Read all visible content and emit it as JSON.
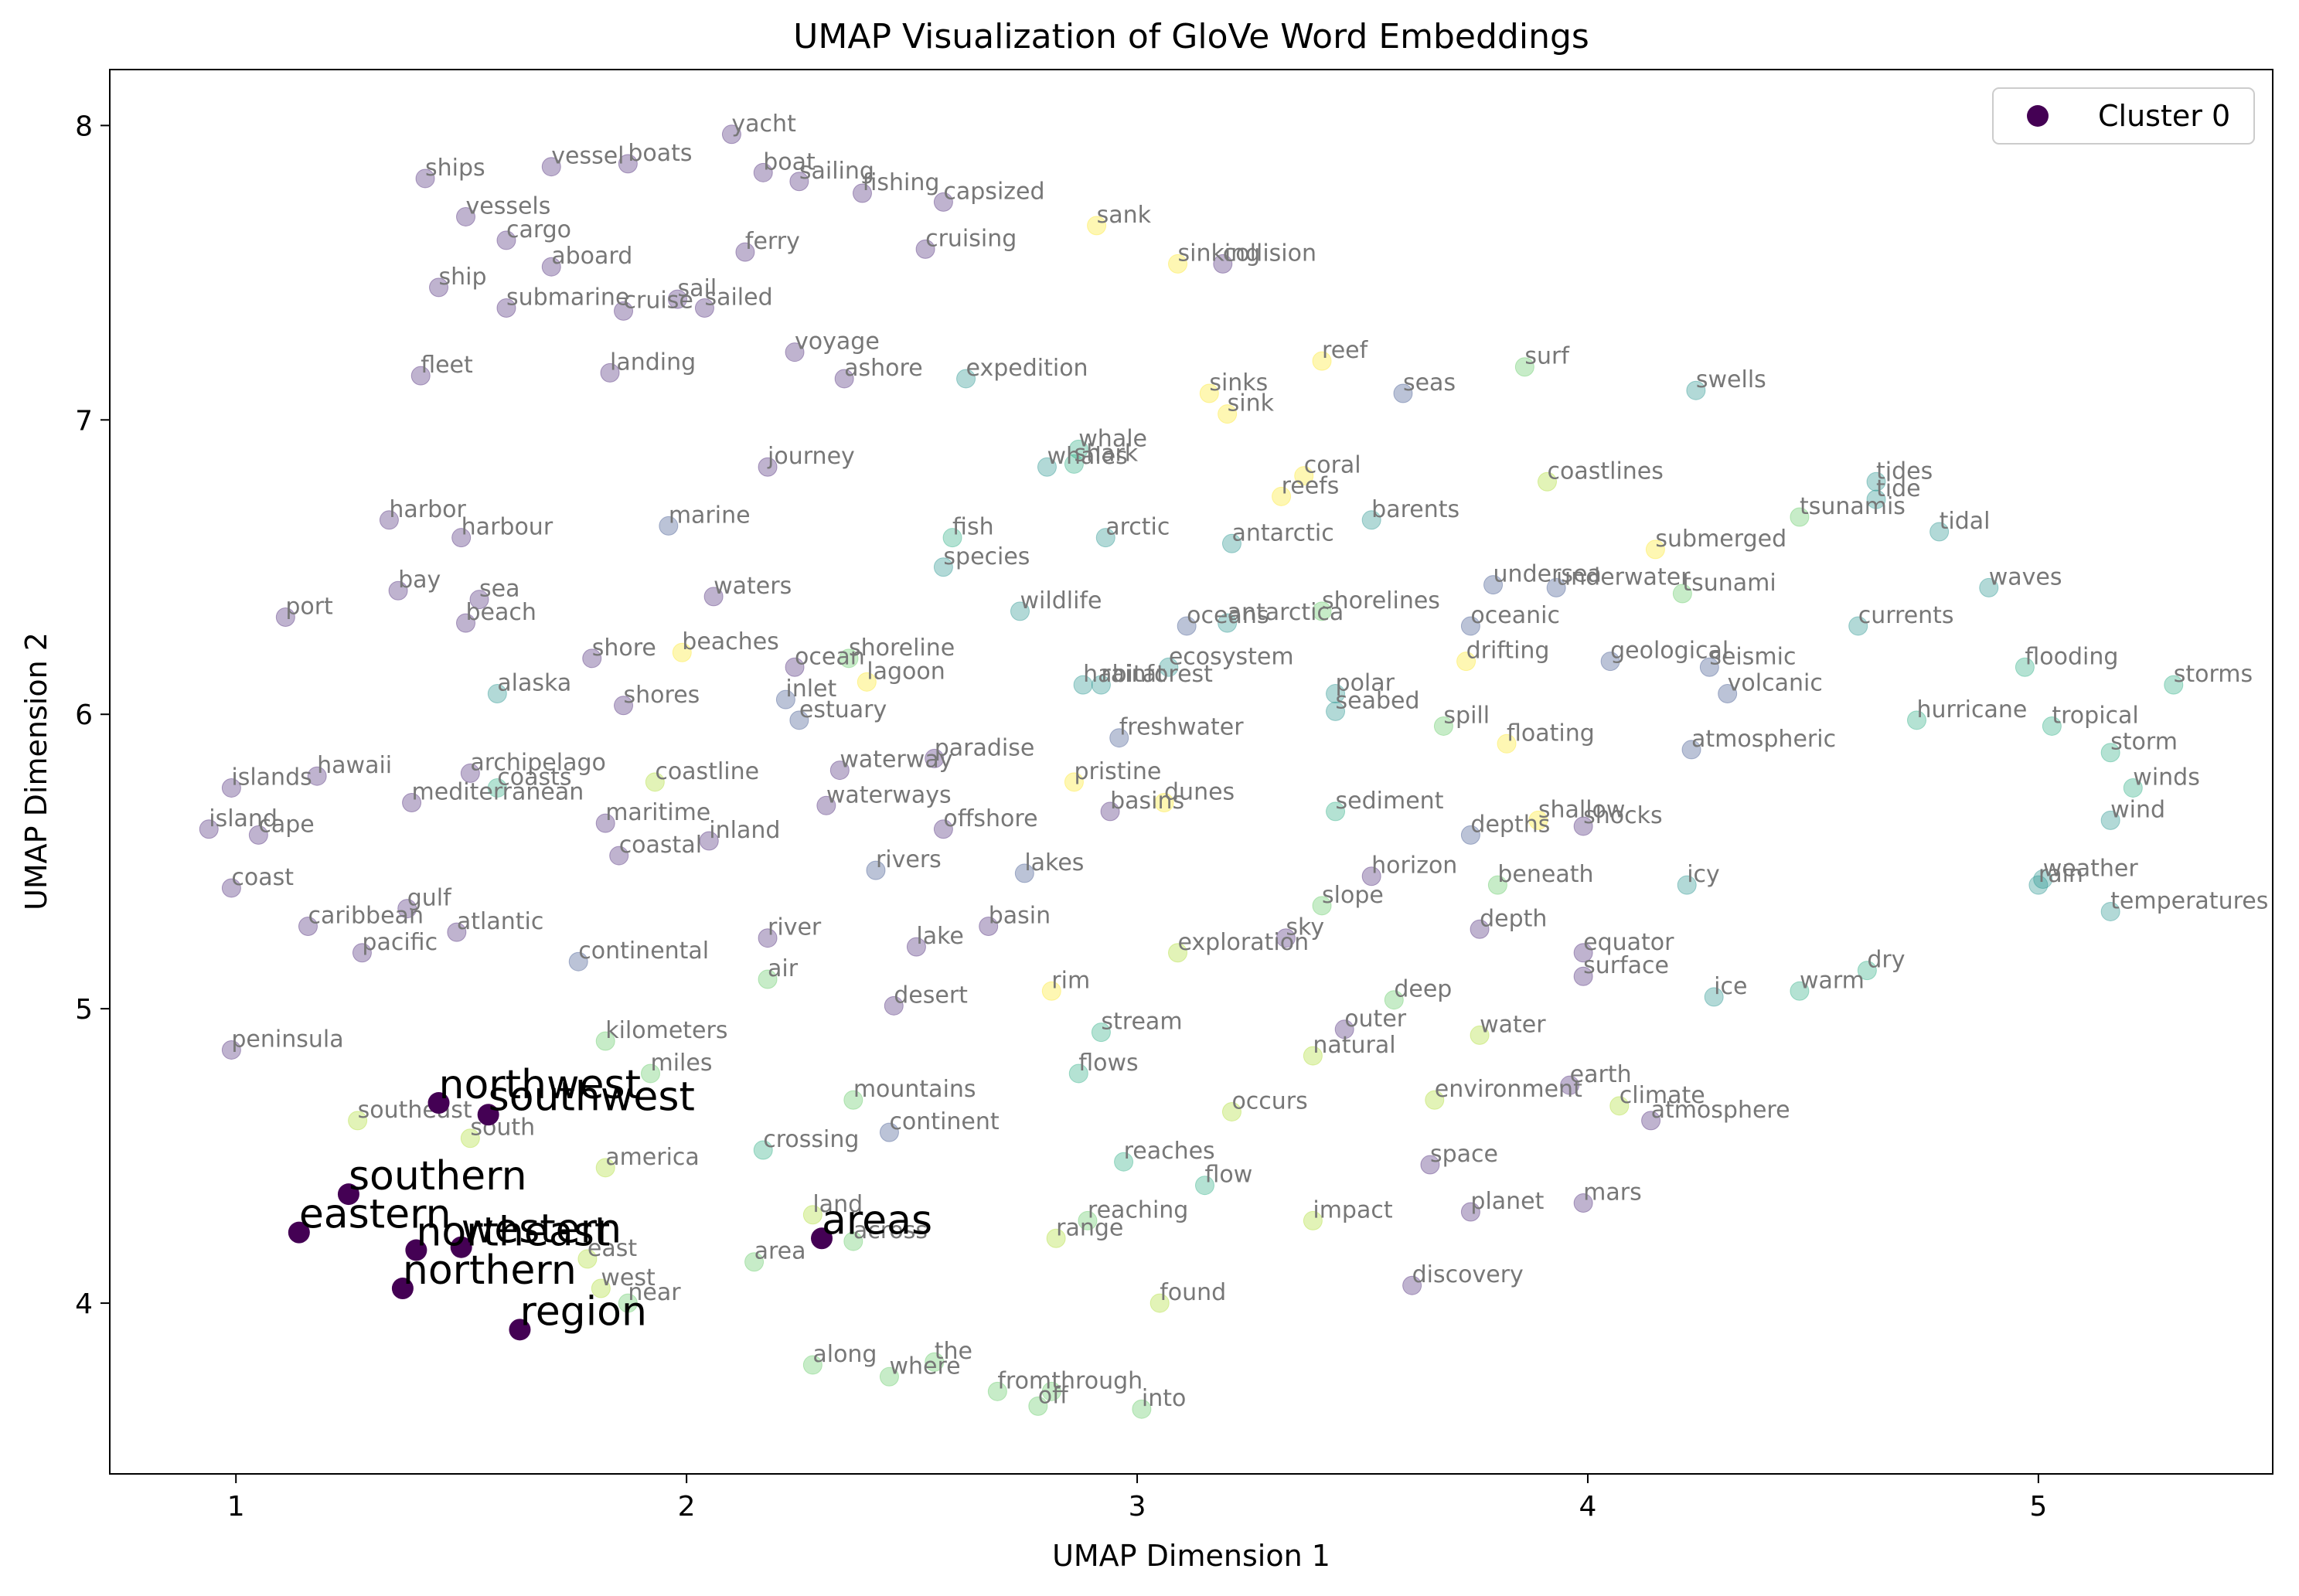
{
  "chart_data": {
    "type": "scatter",
    "title": "UMAP Visualization of GloVe Word Embeddings",
    "xlabel": "UMAP Dimension 1",
    "ylabel": "UMAP Dimension 2",
    "xlim": [
      0.72,
      5.52
    ],
    "ylim": [
      3.42,
      8.19
    ],
    "xticks": [
      1,
      2,
      3,
      4,
      5
    ],
    "yticks": [
      4,
      5,
      6,
      7,
      8
    ],
    "grid": false,
    "legend_position": "top-right",
    "legend": [
      {
        "name": "Cluster 0",
        "color": "#440154"
      }
    ],
    "colors": {
      "c0": "#440154",
      "c1": "#482475",
      "c2": "#3b528b",
      "c3": "#21918c",
      "c4": "#27ad81",
      "c5": "#5ec962",
      "c6": "#addc30",
      "c7": "#fde725"
    },
    "highlighted_cluster": {
      "name": "Cluster 0",
      "points": [
        {
          "w": "northwest",
          "x": 1.45,
          "y": 4.68
        },
        {
          "w": "southwest",
          "x": 1.56,
          "y": 4.64
        },
        {
          "w": "southern",
          "x": 1.25,
          "y": 4.37
        },
        {
          "w": "eastern",
          "x": 1.14,
          "y": 4.24
        },
        {
          "w": "northeast",
          "x": 1.4,
          "y": 4.18
        },
        {
          "w": "western",
          "x": 1.5,
          "y": 4.19
        },
        {
          "w": "northern",
          "x": 1.37,
          "y": 4.05
        },
        {
          "w": "region",
          "x": 1.63,
          "y": 3.91
        },
        {
          "w": "areas",
          "x": 2.3,
          "y": 4.22
        }
      ]
    },
    "points": [
      {
        "w": "yacht",
        "x": 2.1,
        "y": 7.97,
        "c": 1
      },
      {
        "w": "ships",
        "x": 1.42,
        "y": 7.82,
        "c": 1
      },
      {
        "w": "vessel",
        "x": 1.7,
        "y": 7.86,
        "c": 1
      },
      {
        "w": "boats",
        "x": 1.87,
        "y": 7.87,
        "c": 1
      },
      {
        "w": "boat",
        "x": 2.17,
        "y": 7.84,
        "c": 1
      },
      {
        "w": "sailing",
        "x": 2.25,
        "y": 7.81,
        "c": 1
      },
      {
        "w": "fishing",
        "x": 2.39,
        "y": 7.77,
        "c": 1
      },
      {
        "w": "capsized",
        "x": 2.57,
        "y": 7.74,
        "c": 1
      },
      {
        "w": "vessels",
        "x": 1.51,
        "y": 7.69,
        "c": 1
      },
      {
        "w": "cargo",
        "x": 1.6,
        "y": 7.61,
        "c": 1
      },
      {
        "w": "ferry",
        "x": 2.13,
        "y": 7.57,
        "c": 1
      },
      {
        "w": "cruising",
        "x": 2.53,
        "y": 7.58,
        "c": 1
      },
      {
        "w": "sank",
        "x": 2.91,
        "y": 7.66,
        "c": 7
      },
      {
        "w": "sinking",
        "x": 3.09,
        "y": 7.53,
        "c": 7
      },
      {
        "w": "collision",
        "x": 3.19,
        "y": 7.53,
        "c": 1
      },
      {
        "w": "aboard",
        "x": 1.7,
        "y": 7.52,
        "c": 1
      },
      {
        "w": "ship",
        "x": 1.45,
        "y": 7.45,
        "c": 1
      },
      {
        "w": "sail",
        "x": 1.98,
        "y": 7.41,
        "c": 1
      },
      {
        "w": "submarine",
        "x": 1.6,
        "y": 7.38,
        "c": 1
      },
      {
        "w": "cruise",
        "x": 1.86,
        "y": 7.37,
        "c": 1
      },
      {
        "w": "sailed",
        "x": 2.04,
        "y": 7.38,
        "c": 1
      },
      {
        "w": "fleet",
        "x": 1.41,
        "y": 7.15,
        "c": 1
      },
      {
        "w": "landing",
        "x": 1.83,
        "y": 7.16,
        "c": 1
      },
      {
        "w": "voyage",
        "x": 2.24,
        "y": 7.23,
        "c": 1
      },
      {
        "w": "ashore",
        "x": 2.35,
        "y": 7.14,
        "c": 1
      },
      {
        "w": "expedition",
        "x": 2.62,
        "y": 7.14,
        "c": 3
      },
      {
        "w": "reef",
        "x": 3.41,
        "y": 7.2,
        "c": 7
      },
      {
        "w": "sinks",
        "x": 3.16,
        "y": 7.09,
        "c": 7
      },
      {
        "w": "sink",
        "x": 3.2,
        "y": 7.02,
        "c": 7
      },
      {
        "w": "surf",
        "x": 3.86,
        "y": 7.18,
        "c": 5
      },
      {
        "w": "seas",
        "x": 3.59,
        "y": 7.09,
        "c": 2
      },
      {
        "w": "swells",
        "x": 4.24,
        "y": 7.1,
        "c": 3
      },
      {
        "w": "journey",
        "x": 2.18,
        "y": 6.84,
        "c": 1
      },
      {
        "w": "whale",
        "x": 2.87,
        "y": 6.9,
        "c": 4
      },
      {
        "w": "whales",
        "x": 2.8,
        "y": 6.84,
        "c": 3
      },
      {
        "w": "shark",
        "x": 2.86,
        "y": 6.85,
        "c": 4
      },
      {
        "w": "coral",
        "x": 3.37,
        "y": 6.81,
        "c": 7
      },
      {
        "w": "reefs",
        "x": 3.32,
        "y": 6.74,
        "c": 7
      },
      {
        "w": "coastlines",
        "x": 3.91,
        "y": 6.79,
        "c": 6
      },
      {
        "w": "tides",
        "x": 4.64,
        "y": 6.79,
        "c": 3
      },
      {
        "w": "tide",
        "x": 4.64,
        "y": 6.73,
        "c": 3
      },
      {
        "w": "harbor",
        "x": 1.34,
        "y": 6.66,
        "c": 1
      },
      {
        "w": "harbour",
        "x": 1.5,
        "y": 6.6,
        "c": 1
      },
      {
        "w": "marine",
        "x": 1.96,
        "y": 6.64,
        "c": 2
      },
      {
        "w": "fish",
        "x": 2.59,
        "y": 6.6,
        "c": 4
      },
      {
        "w": "arctic",
        "x": 2.93,
        "y": 6.6,
        "c": 3
      },
      {
        "w": "antarctic",
        "x": 3.21,
        "y": 6.58,
        "c": 3
      },
      {
        "w": "barents",
        "x": 3.52,
        "y": 6.66,
        "c": 3
      },
      {
        "w": "tsunamis",
        "x": 4.47,
        "y": 6.67,
        "c": 5
      },
      {
        "w": "tidal",
        "x": 4.78,
        "y": 6.62,
        "c": 3
      },
      {
        "w": "submerged",
        "x": 4.15,
        "y": 6.56,
        "c": 7
      },
      {
        "w": "species",
        "x": 2.57,
        "y": 6.5,
        "c": 3
      },
      {
        "w": "bay",
        "x": 1.36,
        "y": 6.42,
        "c": 1
      },
      {
        "w": "sea",
        "x": 1.54,
        "y": 6.39,
        "c": 1
      },
      {
        "w": "waters",
        "x": 2.06,
        "y": 6.4,
        "c": 1
      },
      {
        "w": "wildlife",
        "x": 2.74,
        "y": 6.35,
        "c": 3
      },
      {
        "w": "undersea",
        "x": 3.79,
        "y": 6.44,
        "c": 2
      },
      {
        "w": "underwater",
        "x": 3.93,
        "y": 6.43,
        "c": 2
      },
      {
        "w": "tsunami",
        "x": 4.21,
        "y": 6.41,
        "c": 5
      },
      {
        "w": "waves",
        "x": 4.89,
        "y": 6.43,
        "c": 3
      },
      {
        "w": "port",
        "x": 1.11,
        "y": 6.33,
        "c": 1
      },
      {
        "w": "beach",
        "x": 1.51,
        "y": 6.31,
        "c": 1
      },
      {
        "w": "oceans",
        "x": 3.11,
        "y": 6.3,
        "c": 2
      },
      {
        "w": "antarctica",
        "x": 3.2,
        "y": 6.31,
        "c": 3
      },
      {
        "w": "shorelines",
        "x": 3.41,
        "y": 6.35,
        "c": 5
      },
      {
        "w": "oceanic",
        "x": 3.74,
        "y": 6.3,
        "c": 2
      },
      {
        "w": "currents",
        "x": 4.6,
        "y": 6.3,
        "c": 3
      },
      {
        "w": "shore",
        "x": 1.79,
        "y": 6.19,
        "c": 1
      },
      {
        "w": "beaches",
        "x": 1.99,
        "y": 6.21,
        "c": 7
      },
      {
        "w": "ocean",
        "x": 2.24,
        "y": 6.16,
        "c": 1
      },
      {
        "w": "shoreline",
        "x": 2.36,
        "y": 6.19,
        "c": 5
      },
      {
        "w": "lagoon",
        "x": 2.4,
        "y": 6.11,
        "c": 7
      },
      {
        "w": "ecosystem",
        "x": 3.07,
        "y": 6.16,
        "c": 3
      },
      {
        "w": "drifting",
        "x": 3.73,
        "y": 6.18,
        "c": 7
      },
      {
        "w": "geological",
        "x": 4.05,
        "y": 6.18,
        "c": 2
      },
      {
        "w": "seismic",
        "x": 4.27,
        "y": 6.16,
        "c": 2
      },
      {
        "w": "flooding",
        "x": 4.97,
        "y": 6.16,
        "c": 4
      },
      {
        "w": "storms",
        "x": 5.3,
        "y": 6.1,
        "c": 4
      },
      {
        "w": "alaska",
        "x": 1.58,
        "y": 6.07,
        "c": 3
      },
      {
        "w": "inlet",
        "x": 2.22,
        "y": 6.05,
        "c": 2
      },
      {
        "w": "habitat",
        "x": 2.88,
        "y": 6.1,
        "c": 3
      },
      {
        "w": "rainforest",
        "x": 2.92,
        "y": 6.1,
        "c": 3
      },
      {
        "w": "polar",
        "x": 3.44,
        "y": 6.07,
        "c": 3
      },
      {
        "w": "volcanic",
        "x": 4.31,
        "y": 6.07,
        "c": 2
      },
      {
        "w": "shores",
        "x": 1.86,
        "y": 6.03,
        "c": 1
      },
      {
        "w": "estuary",
        "x": 2.25,
        "y": 5.98,
        "c": 2
      },
      {
        "w": "seabed",
        "x": 3.44,
        "y": 6.01,
        "c": 3
      },
      {
        "w": "spill",
        "x": 3.68,
        "y": 5.96,
        "c": 5
      },
      {
        "w": "hurricane",
        "x": 4.73,
        "y": 5.98,
        "c": 4
      },
      {
        "w": "tropical",
        "x": 5.03,
        "y": 5.96,
        "c": 4
      },
      {
        "w": "freshwater",
        "x": 2.96,
        "y": 5.92,
        "c": 2
      },
      {
        "w": "floating",
        "x": 3.82,
        "y": 5.9,
        "c": 7
      },
      {
        "w": "atmospheric",
        "x": 4.23,
        "y": 5.88,
        "c": 2
      },
      {
        "w": "storm",
        "x": 5.16,
        "y": 5.87,
        "c": 4
      },
      {
        "w": "paradise",
        "x": 2.55,
        "y": 5.85,
        "c": 1
      },
      {
        "w": "islands",
        "x": 0.99,
        "y": 5.75,
        "c": 1
      },
      {
        "w": "hawaii",
        "x": 1.18,
        "y": 5.79,
        "c": 1
      },
      {
        "w": "archipelago",
        "x": 1.52,
        "y": 5.8,
        "c": 1
      },
      {
        "w": "coasts",
        "x": 1.58,
        "y": 5.75,
        "c": 4
      },
      {
        "w": "coastline",
        "x": 1.93,
        "y": 5.77,
        "c": 6
      },
      {
        "w": "waterway",
        "x": 2.34,
        "y": 5.81,
        "c": 1
      },
      {
        "w": "pristine",
        "x": 2.86,
        "y": 5.77,
        "c": 7
      },
      {
        "w": "winds",
        "x": 5.21,
        "y": 5.75,
        "c": 4
      },
      {
        "w": "mediterranean",
        "x": 1.39,
        "y": 5.7,
        "c": 1
      },
      {
        "w": "waterways",
        "x": 2.31,
        "y": 5.69,
        "c": 1
      },
      {
        "w": "dunes",
        "x": 3.06,
        "y": 5.7,
        "c": 7
      },
      {
        "w": "basins",
        "x": 2.94,
        "y": 5.67,
        "c": 1
      },
      {
        "w": "sediment",
        "x": 3.44,
        "y": 5.67,
        "c": 4
      },
      {
        "w": "shallow",
        "x": 3.89,
        "y": 5.64,
        "c": 7
      },
      {
        "w": "shocks",
        "x": 3.99,
        "y": 5.62,
        "c": 1
      },
      {
        "w": "wind",
        "x": 5.16,
        "y": 5.64,
        "c": 3
      },
      {
        "w": "island",
        "x": 0.94,
        "y": 5.61,
        "c": 1
      },
      {
        "w": "cape",
        "x": 1.05,
        "y": 5.59,
        "c": 1
      },
      {
        "w": "maritime",
        "x": 1.82,
        "y": 5.63,
        "c": 1
      },
      {
        "w": "offshore",
        "x": 2.57,
        "y": 5.61,
        "c": 1
      },
      {
        "w": "depths",
        "x": 3.74,
        "y": 5.59,
        "c": 2
      },
      {
        "w": "inland",
        "x": 2.05,
        "y": 5.57,
        "c": 1
      },
      {
        "w": "coastal",
        "x": 1.85,
        "y": 5.52,
        "c": 1
      },
      {
        "w": "rivers",
        "x": 2.42,
        "y": 5.47,
        "c": 2
      },
      {
        "w": "lakes",
        "x": 2.75,
        "y": 5.46,
        "c": 2
      },
      {
        "w": "horizon",
        "x": 3.52,
        "y": 5.45,
        "c": 1
      },
      {
        "w": "beneath",
        "x": 3.8,
        "y": 5.42,
        "c": 5
      },
      {
        "w": "icy",
        "x": 4.22,
        "y": 5.42,
        "c": 3
      },
      {
        "w": "weather",
        "x": 5.01,
        "y": 5.44,
        "c": 3
      },
      {
        "w": "rain",
        "x": 5.0,
        "y": 5.42,
        "c": 3
      },
      {
        "w": "coast",
        "x": 0.99,
        "y": 5.41,
        "c": 1
      },
      {
        "w": "slope",
        "x": 3.41,
        "y": 5.35,
        "c": 5
      },
      {
        "w": "gulf",
        "x": 1.38,
        "y": 5.34,
        "c": 1
      },
      {
        "w": "temperatures",
        "x": 5.16,
        "y": 5.33,
        "c": 3
      },
      {
        "w": "caribbean",
        "x": 1.16,
        "y": 5.28,
        "c": 1
      },
      {
        "w": "atlantic",
        "x": 1.49,
        "y": 5.26,
        "c": 1
      },
      {
        "w": "basin",
        "x": 2.67,
        "y": 5.28,
        "c": 1
      },
      {
        "w": "depth",
        "x": 3.76,
        "y": 5.27,
        "c": 1
      },
      {
        "w": "river",
        "x": 2.18,
        "y": 5.24,
        "c": 1
      },
      {
        "w": "lake",
        "x": 2.51,
        "y": 5.21,
        "c": 1
      },
      {
        "w": "sky",
        "x": 3.33,
        "y": 5.24,
        "c": 1
      },
      {
        "w": "exploration",
        "x": 3.09,
        "y": 5.19,
        "c": 6
      },
      {
        "w": "equator",
        "x": 3.99,
        "y": 5.19,
        "c": 1
      },
      {
        "w": "pacific",
        "x": 1.28,
        "y": 5.19,
        "c": 1
      },
      {
        "w": "continental",
        "x": 1.76,
        "y": 5.16,
        "c": 2
      },
      {
        "w": "dry",
        "x": 4.62,
        "y": 5.13,
        "c": 4
      },
      {
        "w": "surface",
        "x": 3.99,
        "y": 5.11,
        "c": 1
      },
      {
        "w": "air",
        "x": 2.18,
        "y": 5.1,
        "c": 5
      },
      {
        "w": "rim",
        "x": 2.81,
        "y": 5.06,
        "c": 7
      },
      {
        "w": "warm",
        "x": 4.47,
        "y": 5.06,
        "c": 4
      },
      {
        "w": "ice",
        "x": 4.28,
        "y": 5.04,
        "c": 3
      },
      {
        "w": "deep",
        "x": 3.57,
        "y": 5.03,
        "c": 5
      },
      {
        "w": "desert",
        "x": 2.46,
        "y": 5.01,
        "c": 1
      },
      {
        "w": "outer",
        "x": 3.46,
        "y": 4.93,
        "c": 1
      },
      {
        "w": "stream",
        "x": 2.92,
        "y": 4.92,
        "c": 4
      },
      {
        "w": "water",
        "x": 3.76,
        "y": 4.91,
        "c": 6
      },
      {
        "w": "kilometers",
        "x": 1.82,
        "y": 4.89,
        "c": 5
      },
      {
        "w": "peninsula",
        "x": 0.99,
        "y": 4.86,
        "c": 1
      },
      {
        "w": "natural",
        "x": 3.39,
        "y": 4.84,
        "c": 6
      },
      {
        "w": "miles",
        "x": 1.92,
        "y": 4.78,
        "c": 5
      },
      {
        "w": "flows",
        "x": 2.87,
        "y": 4.78,
        "c": 4
      },
      {
        "w": "earth",
        "x": 3.96,
        "y": 4.74,
        "c": 1
      },
      {
        "w": "mountains",
        "x": 2.37,
        "y": 4.69,
        "c": 5
      },
      {
        "w": "environment",
        "x": 3.66,
        "y": 4.69,
        "c": 6
      },
      {
        "w": "climate",
        "x": 4.07,
        "y": 4.67,
        "c": 6
      },
      {
        "w": "occurs",
        "x": 3.21,
        "y": 4.65,
        "c": 6
      },
      {
        "w": "southeast",
        "x": 1.27,
        "y": 4.62,
        "c": 6
      },
      {
        "w": "atmosphere",
        "x": 4.14,
        "y": 4.62,
        "c": 1
      },
      {
        "w": "continent",
        "x": 2.45,
        "y": 4.58,
        "c": 2
      },
      {
        "w": "south",
        "x": 1.52,
        "y": 4.56,
        "c": 6
      },
      {
        "w": "crossing",
        "x": 2.17,
        "y": 4.52,
        "c": 4
      },
      {
        "w": "reaches",
        "x": 2.97,
        "y": 4.48,
        "c": 4
      },
      {
        "w": "space",
        "x": 3.65,
        "y": 4.47,
        "c": 1
      },
      {
        "w": "america",
        "x": 1.82,
        "y": 4.46,
        "c": 6
      },
      {
        "w": "flow",
        "x": 3.15,
        "y": 4.4,
        "c": 4
      },
      {
        "w": "mars",
        "x": 3.99,
        "y": 4.34,
        "c": 1
      },
      {
        "w": "planet",
        "x": 3.74,
        "y": 4.31,
        "c": 1
      },
      {
        "w": "land",
        "x": 2.28,
        "y": 4.3,
        "c": 6
      },
      {
        "w": "reaching",
        "x": 2.89,
        "y": 4.28,
        "c": 5
      },
      {
        "w": "impact",
        "x": 3.39,
        "y": 4.28,
        "c": 6
      },
      {
        "w": "across",
        "x": 2.37,
        "y": 4.21,
        "c": 5
      },
      {
        "w": "range",
        "x": 2.82,
        "y": 4.22,
        "c": 6
      },
      {
        "w": "east",
        "x": 1.78,
        "y": 4.15,
        "c": 6
      },
      {
        "w": "area",
        "x": 2.15,
        "y": 4.14,
        "c": 5
      },
      {
        "w": "west",
        "x": 1.81,
        "y": 4.05,
        "c": 6
      },
      {
        "w": "discovery",
        "x": 3.61,
        "y": 4.06,
        "c": 1
      },
      {
        "w": "near",
        "x": 1.87,
        "y": 4.0,
        "c": 5
      },
      {
        "w": "found",
        "x": 3.05,
        "y": 4.0,
        "c": 6
      },
      {
        "w": "along",
        "x": 2.28,
        "y": 3.79,
        "c": 5
      },
      {
        "w": "the",
        "x": 2.55,
        "y": 3.8,
        "c": 5
      },
      {
        "w": "where",
        "x": 2.45,
        "y": 3.75,
        "c": 5
      },
      {
        "w": "from",
        "x": 2.69,
        "y": 3.7,
        "c": 5
      },
      {
        "w": "off",
        "x": 2.78,
        "y": 3.65,
        "c": 5
      },
      {
        "w": "through",
        "x": 2.81,
        "y": 3.7,
        "c": 5
      },
      {
        "w": "into",
        "x": 3.01,
        "y": 3.64,
        "c": 5
      }
    ]
  }
}
